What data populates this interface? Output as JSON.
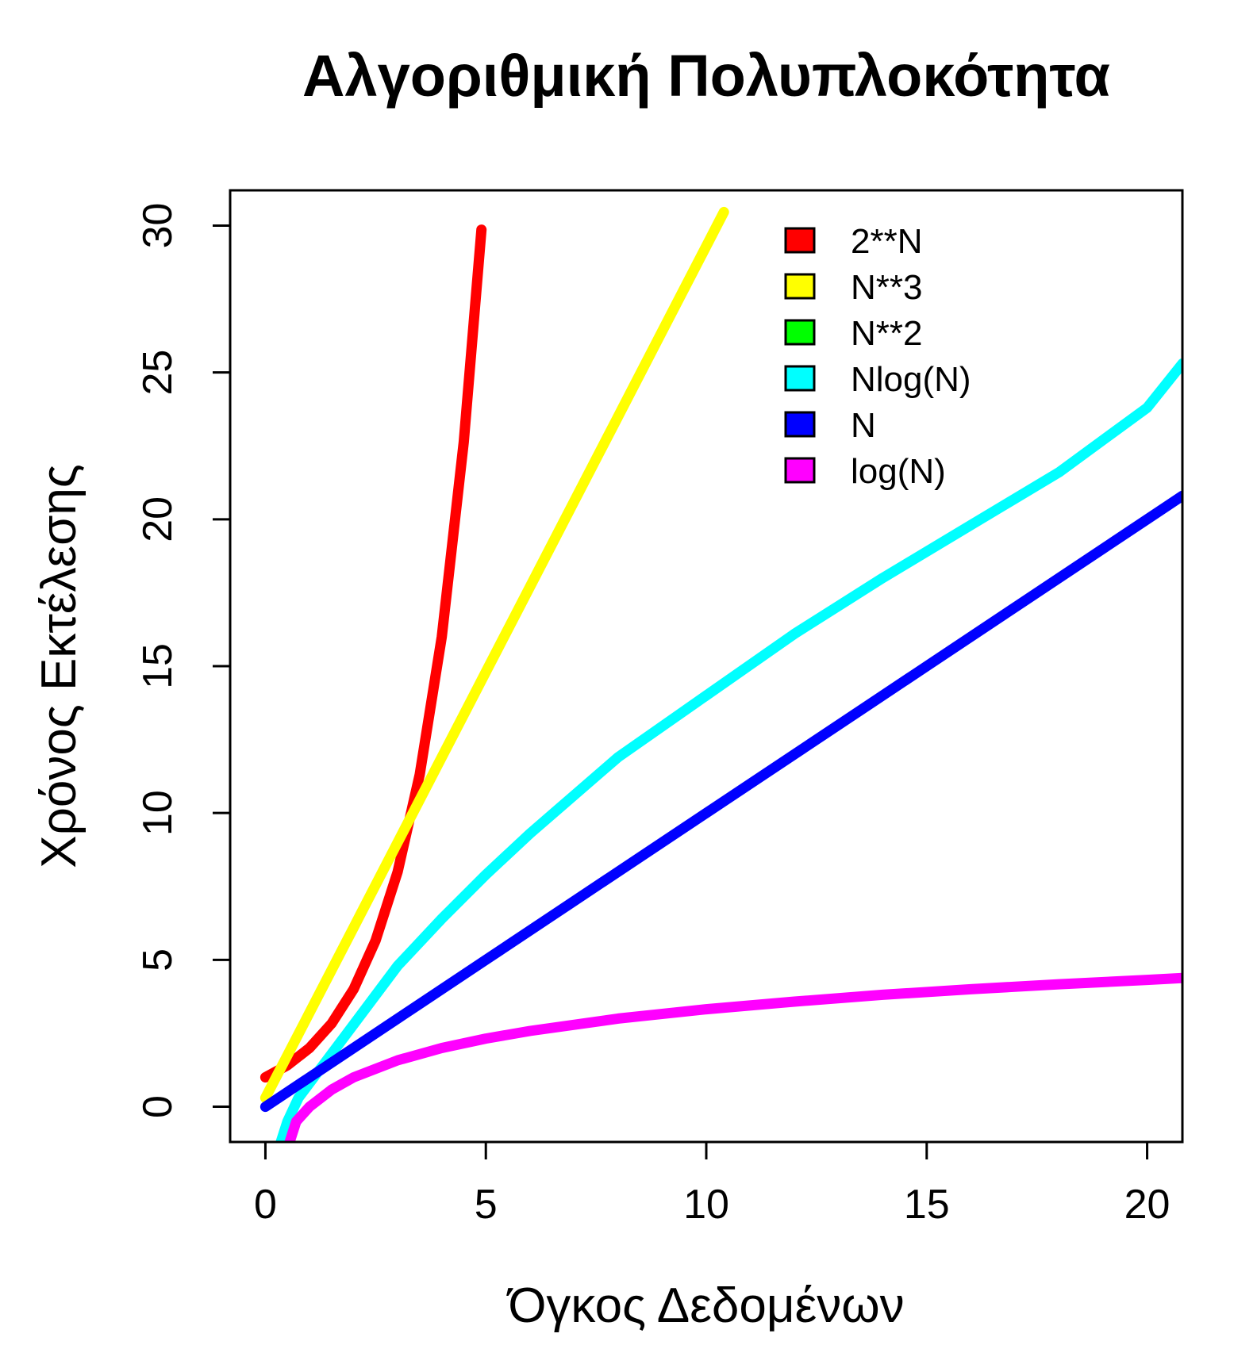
{
  "chart_data": {
    "type": "line",
    "title": "Αλγοριθμική Πολυπλοκότητα",
    "xlabel": "Όγκος Δεδομένων",
    "ylabel": "Χρόνος Εκτέλεσης",
    "xlim": [
      -0.8,
      20.8
    ],
    "ylim": [
      -1.2,
      31.2
    ],
    "xticks": [
      0,
      5,
      10,
      15,
      20
    ],
    "yticks": [
      0,
      5,
      10,
      15,
      20,
      25,
      30
    ],
    "x_tick_labels": [
      "0",
      "5",
      "10",
      "15",
      "20"
    ],
    "y_tick_labels": [
      "0",
      "5",
      "10",
      "15",
      "20",
      "25",
      "30"
    ],
    "grid": false,
    "legend_position": "top-right",
    "series": [
      {
        "name": "2**N",
        "color": "#FF0000",
        "x": [
          0,
          0.5,
          1,
          1.5,
          2,
          2.5,
          3,
          3.5,
          4,
          4.5,
          4.9
        ],
        "y": [
          1.0,
          1.41,
          2.0,
          2.83,
          4.0,
          5.66,
          8.0,
          11.31,
          16.0,
          22.63,
          29.86
        ]
      },
      {
        "name": "N**3",
        "color": "#FFFF00",
        "x": [
          0,
          1,
          2,
          3,
          4,
          5,
          6,
          7,
          8,
          9,
          10,
          10.4
        ],
        "y": [
          0.3,
          3.2,
          6.1,
          9.0,
          11.9,
          14.8,
          17.7,
          20.6,
          23.5,
          26.4,
          29.3,
          30.46
        ]
      },
      {
        "name": "N**2",
        "color": "#00FF00",
        "x": [],
        "y": []
      },
      {
        "name": "Nlog(N)",
        "color": "#00FFFF",
        "x": [
          0.35,
          0.5,
          0.75,
          1,
          1.5,
          2,
          3,
          4,
          5,
          6,
          7,
          8,
          10,
          12,
          14,
          16,
          18,
          20,
          20.8
        ],
        "y": [
          -1.2,
          -0.5,
          0.3,
          0.8,
          1.8,
          2.8,
          4.8,
          6.4,
          7.9,
          9.3,
          10.6,
          11.9,
          14.0,
          16.1,
          18.0,
          19.8,
          21.6,
          23.8,
          25.3
        ]
      },
      {
        "name": "N",
        "color": "#0000FF",
        "x": [
          0,
          5,
          10,
          15,
          20,
          20.8
        ],
        "y": [
          0,
          5,
          10,
          15,
          20,
          20.8
        ]
      },
      {
        "name": "log(N)",
        "color": "#FF00FF",
        "x": [
          0.55,
          0.7,
          1,
          1.5,
          2,
          3,
          4,
          5,
          6,
          8,
          10,
          12,
          14,
          16,
          18,
          20,
          20.8
        ],
        "y": [
          -1.2,
          -0.5,
          0.0,
          0.58,
          1.0,
          1.58,
          2.0,
          2.32,
          2.58,
          3.0,
          3.32,
          3.58,
          3.81,
          4.0,
          4.17,
          4.32,
          4.38
        ]
      }
    ]
  }
}
